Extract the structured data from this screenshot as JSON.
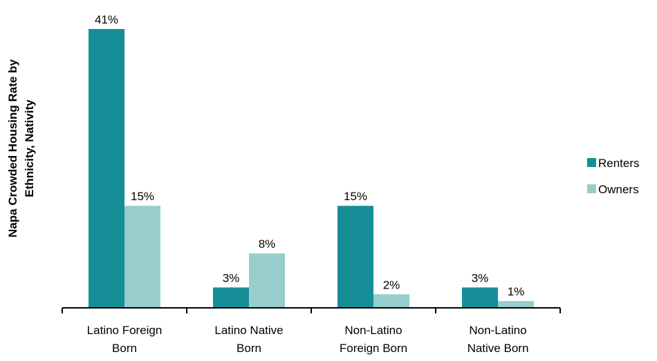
{
  "chart_data": {
    "type": "bar",
    "title": "",
    "ylabel": [
      "Napa Crowded Housing Rate by",
      "Ethnicity, Nativity"
    ],
    "xlabel": "",
    "categories": [
      [
        "Latino Foreign",
        "Born"
      ],
      [
        "Latino Native",
        "Born"
      ],
      [
        "Non-Latino",
        "Foreign Born"
      ],
      [
        "Non-Latino",
        "Native Born"
      ]
    ],
    "series": [
      {
        "name": "Renters",
        "color": "#168e98",
        "values": [
          41,
          3,
          15,
          3
        ],
        "labels": [
          "41%",
          "3%",
          "15%",
          "3%"
        ]
      },
      {
        "name": "Owners",
        "color": "#98cdcd",
        "values": [
          15,
          8,
          2,
          1
        ],
        "labels": [
          "15%",
          "8%",
          "2%",
          "1%"
        ]
      }
    ],
    "ylim": [
      0,
      41
    ],
    "legend_position": "right",
    "grid": false
  }
}
